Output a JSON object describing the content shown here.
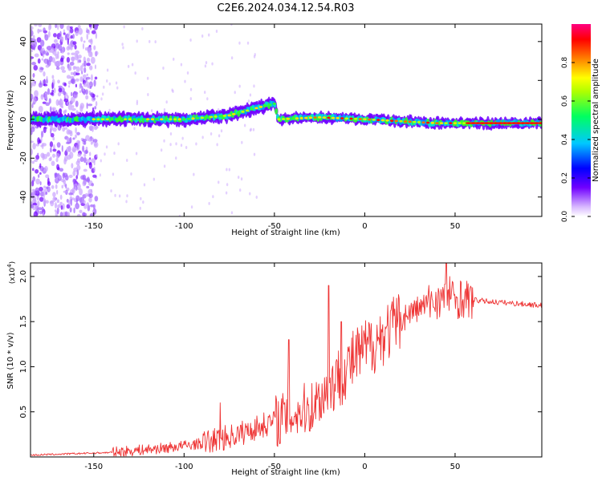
{
  "title": "C2E6.2024.034.12.54.R03",
  "chart_data": [
    {
      "type": "heatmap",
      "name": "spectrogram",
      "xlabel": "Height of straight line (km)",
      "ylabel": "Frequency (Hz)",
      "xlim": [
        -185,
        98
      ],
      "ylim": [
        -50,
        49
      ],
      "xticks": [
        -150,
        -100,
        -50,
        0,
        50
      ],
      "yticks": [
        -40,
        -20,
        0,
        20,
        40
      ],
      "description_ridge": [
        {
          "x": -185,
          "y": 0
        },
        {
          "x": -150,
          "y": 0
        },
        {
          "x": -100,
          "y": 0
        },
        {
          "x": -75,
          "y": 2
        },
        {
          "x": -55,
          "y": 7
        },
        {
          "x": -50,
          "y": 8
        },
        {
          "x": -48,
          "y": 0
        },
        {
          "x": -25,
          "y": 1
        },
        {
          "x": 0,
          "y": 0
        },
        {
          "x": 40,
          "y": -2
        },
        {
          "x": 98,
          "y": -2
        }
      ],
      "colorbar": {
        "label": "Normalized spectral amplitude",
        "range": [
          0,
          1
        ],
        "ticks": [
          "0.0",
          "0.2",
          "0.4",
          "0.6",
          "0.8"
        ],
        "colors": [
          "#ffffff",
          "#7000ff",
          "#0000ff",
          "#00c8ff",
          "#00ff00",
          "#ffff00",
          "#ff8000",
          "#ff0000",
          "#ff0080"
        ]
      }
    },
    {
      "type": "line",
      "name": "snr",
      "xlabel": "Height of straight line (km)",
      "ylabel": "SNR (10 * v/v)",
      "yexponent": "(x10",
      "yexponent_sup": "4",
      "yexponent_close": ")",
      "xlim": [
        -185,
        98
      ],
      "ylim": [
        0,
        2.15
      ],
      "xticks": [
        -150,
        -100,
        -50,
        0,
        50
      ],
      "yticks": [
        "0.5",
        "1.0",
        "1.5",
        "2.0"
      ],
      "color": "#ee3333",
      "envelope": [
        {
          "x": -185,
          "y": 0.02
        },
        {
          "x": -140,
          "y": 0.05
        },
        {
          "x": -110,
          "y": 0.1
        },
        {
          "x": -90,
          "y": 0.15
        },
        {
          "x": -70,
          "y": 0.25
        },
        {
          "x": -50,
          "y": 0.4
        },
        {
          "x": -30,
          "y": 0.55
        },
        {
          "x": -20,
          "y": 0.75
        },
        {
          "x": -5,
          "y": 1.1
        },
        {
          "x": 10,
          "y": 1.35
        },
        {
          "x": 25,
          "y": 1.6
        },
        {
          "x": 40,
          "y": 1.75
        },
        {
          "x": 55,
          "y": 1.75
        },
        {
          "x": 70,
          "y": 1.72
        },
        {
          "x": 98,
          "y": 1.68
        }
      ],
      "spikes": [
        {
          "x": -80,
          "y": 0.6
        },
        {
          "x": -42,
          "y": 1.3
        },
        {
          "x": -20,
          "y": 1.9
        },
        {
          "x": -13,
          "y": 1.5
        },
        {
          "x": 45,
          "y": 2.15
        },
        {
          "x": 47,
          "y": 2.0
        },
        {
          "x": 53,
          "y": 1.95
        }
      ]
    }
  ]
}
